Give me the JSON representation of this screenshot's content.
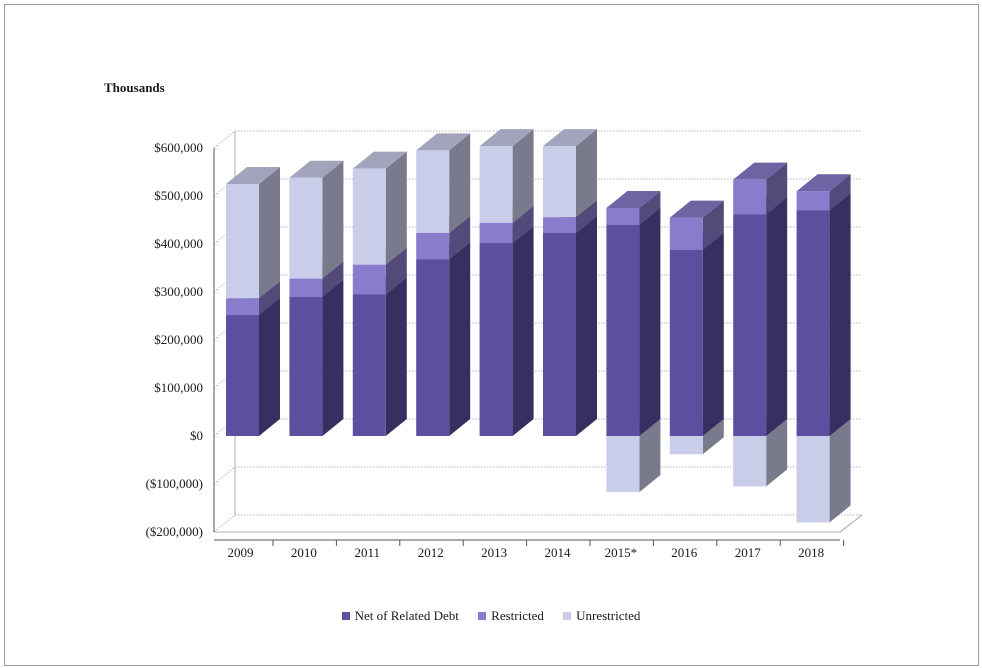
{
  "chart_data": {
    "type": "bar",
    "stacked": true,
    "style": "3d-stacked-column",
    "title": "",
    "ylabel": "Thousands",
    "xlabel": "",
    "categories": [
      "2009",
      "2010",
      "2011",
      "2012",
      "2013",
      "2014",
      "2015*",
      "2016",
      "2017",
      "2018"
    ],
    "series": [
      {
        "name": "Net of Related Debt",
        "color": "#5b4fa0",
        "values": [
          252000,
          290000,
          295000,
          368000,
          402000,
          423000,
          440000,
          388000,
          462000,
          470000
        ]
      },
      {
        "name": "Restricted",
        "color": "#8a7ccc",
        "values": [
          35000,
          38000,
          62000,
          55000,
          42000,
          33000,
          35000,
          67000,
          72000,
          40000
        ]
      },
      {
        "name": "Unrestricted",
        "color": "#c9cdea",
        "values": [
          238000,
          210000,
          200000,
          172000,
          160000,
          148000,
          -117000,
          -38000,
          -105000,
          -180000
        ]
      }
    ],
    "ylim": [
      -200000,
      600000
    ],
    "yticks": [
      600000,
      500000,
      400000,
      300000,
      200000,
      100000,
      0,
      -100000,
      -200000
    ],
    "ytick_labels": [
      "$600,000",
      "$500,000",
      "$400,000",
      "$300,000",
      "$200,000",
      "$100,000",
      "$0",
      "($100,000)",
      "($200,000)"
    ],
    "grid": true,
    "legend": "bottom"
  }
}
